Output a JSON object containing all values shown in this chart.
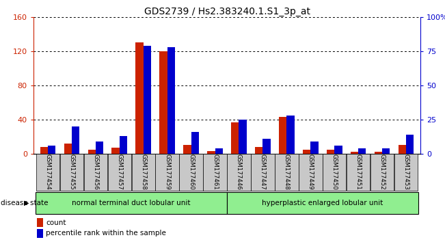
{
  "title": "GDS2739 / Hs2.383240.1.S1_3p_at",
  "samples": [
    "GSM177454",
    "GSM177455",
    "GSM177456",
    "GSM177457",
    "GSM177458",
    "GSM177459",
    "GSM177460",
    "GSM177461",
    "GSM177446",
    "GSM177447",
    "GSM177448",
    "GSM177449",
    "GSM177450",
    "GSM177451",
    "GSM177452",
    "GSM177453"
  ],
  "count_values": [
    8,
    12,
    5,
    7,
    130,
    120,
    10,
    3,
    37,
    8,
    43,
    5,
    5,
    2,
    2,
    10
  ],
  "percentile_values": [
    6,
    20,
    9,
    13,
    79,
    78,
    16,
    4,
    25,
    11,
    28,
    9,
    6,
    4,
    4,
    14
  ],
  "groups": [
    {
      "label": "normal terminal duct lobular unit",
      "start": 0,
      "end": 8,
      "color": "#90ee90"
    },
    {
      "label": "hyperplastic enlarged lobular unit",
      "start": 8,
      "end": 16,
      "color": "#90ee90"
    }
  ],
  "ylim_left": [
    0,
    160
  ],
  "ylim_right": [
    0,
    100
  ],
  "yticks_left": [
    0,
    40,
    80,
    120,
    160
  ],
  "yticks_right": [
    0,
    25,
    50,
    75,
    100
  ],
  "ytick_labels_right": [
    "0",
    "25",
    "50",
    "75",
    "100%"
  ],
  "count_color": "#cc2200",
  "percentile_color": "#0000cc",
  "bar_width": 0.32,
  "grid_color": "#000000",
  "background_plot": "#ffffff",
  "tick_bg_color": "#c8c8c8",
  "disease_state_label": "disease state",
  "legend_count": "count",
  "legend_percentile": "percentile rank within the sample",
  "title_fontsize": 10,
  "group_split": 8
}
